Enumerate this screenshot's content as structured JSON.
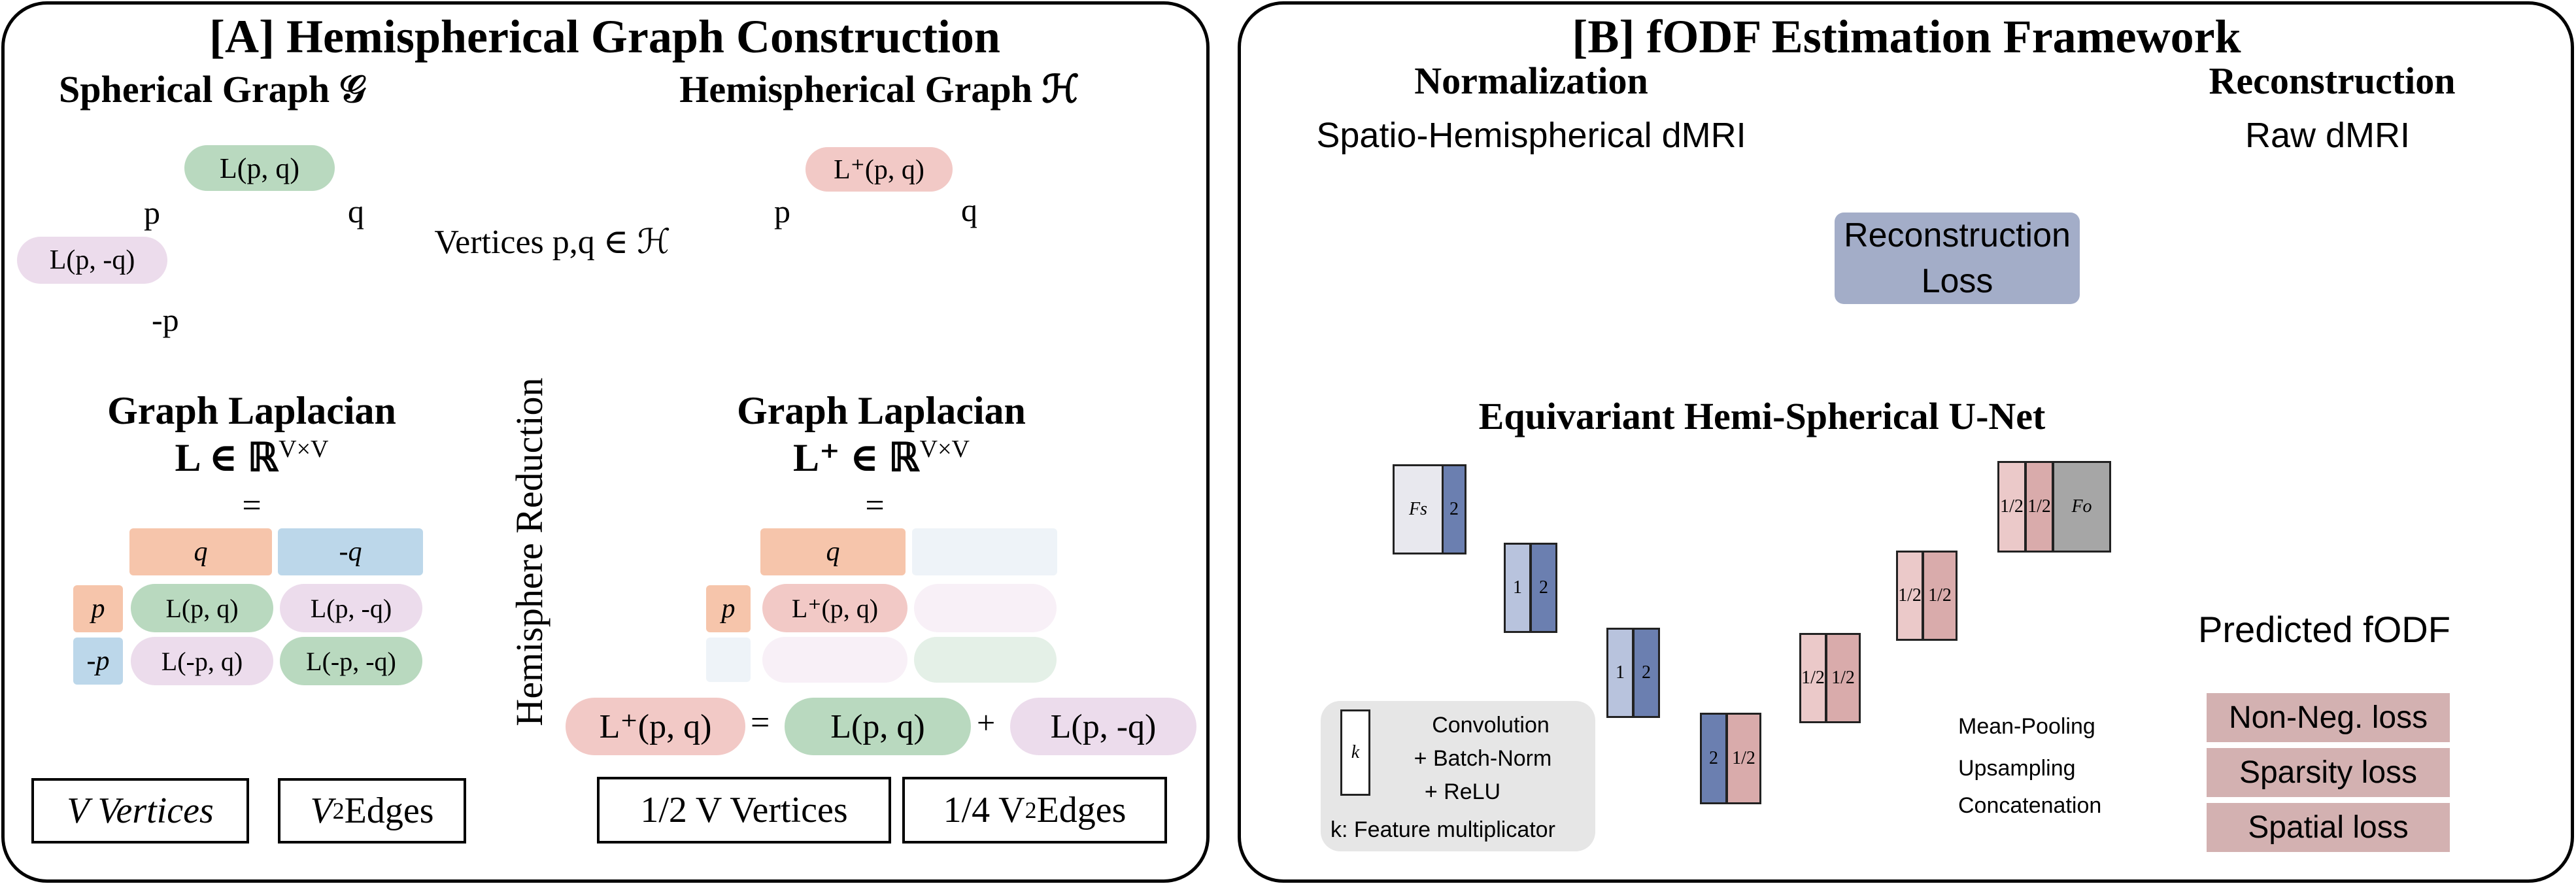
{
  "panelA": {
    "title": "[A] Hemispherical Graph Construction",
    "spherical_title": "Spherical Graph 𝒢",
    "hemi_title": "Hemispherical Graph ℋ",
    "vertices_label": "Vertices p,q ∈ ℋ",
    "reduction_label": "Hemisphere Reduction",
    "sphere_labels": {
      "L_pq": "L(p, q)",
      "L_pmq": "L(p, -q)",
      "p": "p",
      "q": "q",
      "mp": "-p",
      "Lplus_pq": "L⁺(p, q)"
    },
    "laplacian_title": "Graph Laplacian",
    "laplacian_formula": "L ∈ ℝ",
    "laplacian_sup": "V×V",
    "laplacian_plus_formula": "L⁺ ∈ ℝ",
    "equals": "=",
    "matrix": {
      "q": "q",
      "mq": "-q",
      "p": "p",
      "mp": "-p",
      "c11": "L(p, q)",
      "c12": "L(p, -q)",
      "c21": "L(-p, q)",
      "c22": "L(-p, -q)"
    },
    "hemi_matrix": {
      "q": "q",
      "p": "p",
      "c11": "L⁺(p, q)"
    },
    "eq_plus": "+",
    "eq_lhs": "L⁺(p, q)",
    "eq_t1": "L(p, q)",
    "eq_t2": "L(p, -q)",
    "box_v": "V  Vertices",
    "box_v2": "V",
    "box_v2_sup": "2",
    "box_v2_rest": "Edges",
    "box_hv": "1/2 V Vertices",
    "box_hv2": "1/4 V",
    "box_hv2_sup": "2",
    "box_hv2_rest": "Edges"
  },
  "panelB": {
    "title": "[B] fODF Estimation Framework",
    "normalization": "Normalization",
    "normalization_sub": "Spatio-Hemispherical dMRI",
    "reconstruction": "Reconstruction",
    "reconstruction_sub": "Raw dMRI",
    "recon_loss": "Reconstruction Loss",
    "unet_title": "Equivariant Hemi-Spherical U-Net",
    "predicted": "Predicted fODF",
    "losses": [
      "Non-Neg. loss",
      "Sparsity loss",
      "Spatial loss"
    ],
    "blocks": {
      "fs": "Fs",
      "fo": "Fo",
      "two": "2",
      "one": "1",
      "half": "1/2"
    },
    "legend_left": {
      "k": "k",
      "conv": "Convolution",
      "bn": "+ Batch-Norm",
      "relu": "+ ReLU",
      "note": "k: Feature multiplicator"
    },
    "legend_right": {
      "pool": "Mean-Pooling",
      "up": "Upsampling",
      "concat": "Concatenation"
    }
  },
  "colors": {
    "pink": "#f2c9c6",
    "green": "#b9d9bf",
    "lavender": "#ecdcec",
    "peach": "#f6c5ab",
    "lightblue": "#bcd7ea",
    "slate": "#a3adc8",
    "block_blue_dark": "#6b7fb0",
    "block_blue_light": "#b8c3dd",
    "block_red": "#d9abab",
    "block_red_light": "#ebc9c9",
    "gray": "#a6a6a6",
    "lossbox": "#d3b1b1"
  }
}
